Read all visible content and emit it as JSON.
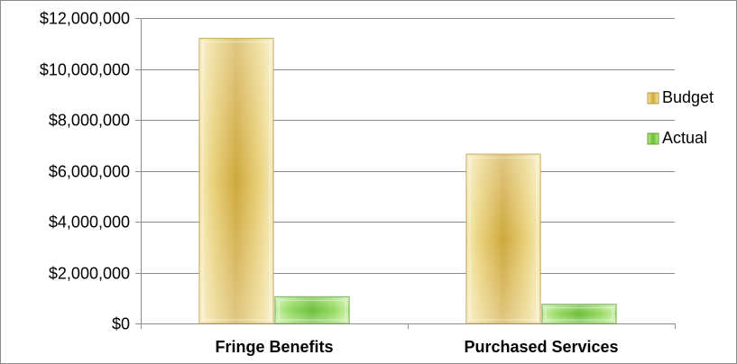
{
  "chart_data": {
    "type": "bar",
    "categories": [
      "Fringe Benefits",
      "Purchased Services"
    ],
    "series": [
      {
        "name": "Budget",
        "values": [
          11200000,
          6650000
        ],
        "color": "#e3c96a"
      },
      {
        "name": "Actual",
        "values": [
          1050000,
          750000
        ],
        "color": "#86cf54"
      }
    ],
    "ylim": [
      0,
      12000000
    ],
    "yticks": [
      0,
      2000000,
      4000000,
      6000000,
      8000000,
      10000000,
      12000000
    ],
    "ytick_labels": [
      "$0",
      "$2,000,000",
      "$4,000,000",
      "$6,000,000",
      "$8,000,000",
      "$10,000,000",
      "$12,000,000"
    ],
    "grid": true,
    "legend_position": "right"
  }
}
